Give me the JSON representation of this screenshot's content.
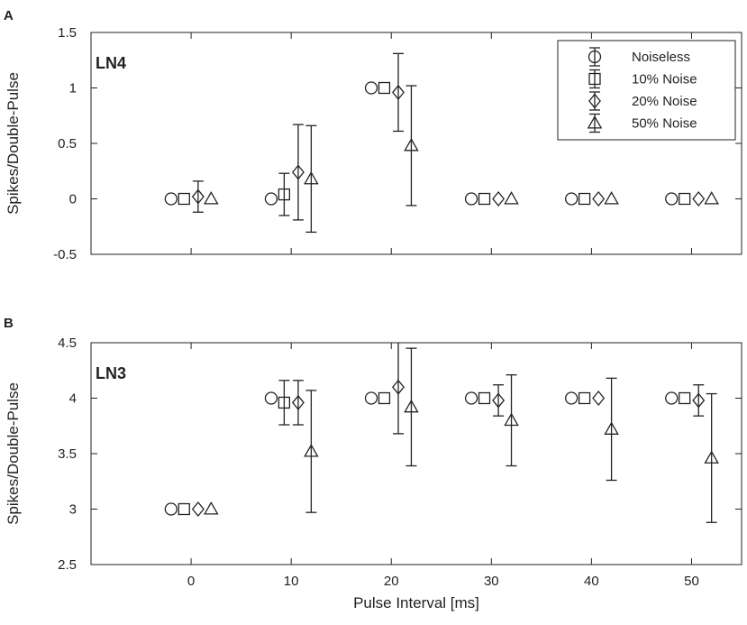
{
  "chart_data": [
    {
      "type": "scatter",
      "panel_letter": "A",
      "title": "LN4",
      "xlabel": "",
      "ylabel": "Spikes/Double-Pulse",
      "xlim": [
        -10,
        55
      ],
      "ylim": [
        -0.5,
        1.5
      ],
      "x_ticks": [
        "0",
        "10",
        "20",
        "30",
        "40",
        "50"
      ],
      "y_ticks": [
        "-0.5",
        "0",
        "0.5",
        "1",
        "1.5"
      ],
      "categories": [
        0,
        10,
        20,
        30,
        40,
        50
      ],
      "legend": {
        "placement": "top-right"
      },
      "series": [
        {
          "name": "Noiseless",
          "marker": "circle",
          "x_offset": -2,
          "values": [
            0,
            0,
            1,
            0,
            0,
            0
          ],
          "errors": [
            0,
            0,
            0,
            0,
            0,
            0
          ]
        },
        {
          "name": "10% Noise",
          "marker": "square",
          "x_offset": -0.7,
          "values": [
            0,
            0.04,
            1,
            0,
            0,
            0
          ],
          "errors": [
            0,
            0.19,
            0,
            0,
            0,
            0
          ]
        },
        {
          "name": "20% Noise",
          "marker": "diamond",
          "x_offset": 0.7,
          "values": [
            0.02,
            0.24,
            0.96,
            0,
            0,
            0
          ],
          "errors": [
            0.14,
            0.43,
            0.35,
            0,
            0,
            0
          ]
        },
        {
          "name": "50% Noise",
          "marker": "triangle",
          "x_offset": 2,
          "values": [
            0,
            0.18,
            0.48,
            0,
            0,
            0
          ],
          "errors": [
            0,
            0.48,
            0.54,
            0,
            0,
            0
          ]
        }
      ]
    },
    {
      "type": "scatter",
      "panel_letter": "B",
      "title": "LN3",
      "xlabel": "Pulse Interval [ms]",
      "ylabel": "Spikes/Double-Pulse",
      "xlim": [
        -10,
        55
      ],
      "ylim": [
        2.5,
        4.5
      ],
      "x_ticks": [
        "0",
        "10",
        "20",
        "30",
        "40",
        "50"
      ],
      "y_ticks": [
        "2.5",
        "3",
        "3.5",
        "4",
        "4.5"
      ],
      "categories": [
        0,
        10,
        20,
        30,
        40,
        50
      ],
      "series": [
        {
          "name": "Noiseless",
          "marker": "circle",
          "x_offset": -2,
          "values": [
            3,
            4,
            4,
            4,
            4,
            4
          ],
          "errors": [
            0,
            0,
            0,
            0,
            0,
            0
          ]
        },
        {
          "name": "10% Noise",
          "marker": "square",
          "x_offset": -0.7,
          "values": [
            3,
            3.96,
            4,
            4,
            4,
            4
          ],
          "errors": [
            0,
            0.2,
            0,
            0,
            0,
            0
          ]
        },
        {
          "name": "20% Noise",
          "marker": "diamond",
          "x_offset": 0.7,
          "values": [
            3,
            3.96,
            4.1,
            3.98,
            4,
            3.98
          ],
          "errors": [
            0,
            0.2,
            0.42,
            0.14,
            0,
            0.14
          ]
        },
        {
          "name": "50% Noise",
          "marker": "triangle",
          "x_offset": 2,
          "values": [
            3,
            3.52,
            3.92,
            3.8,
            3.72,
            3.46
          ],
          "errors": [
            0,
            0.55,
            0.53,
            0.41,
            0.46,
            0.58
          ]
        }
      ]
    }
  ]
}
